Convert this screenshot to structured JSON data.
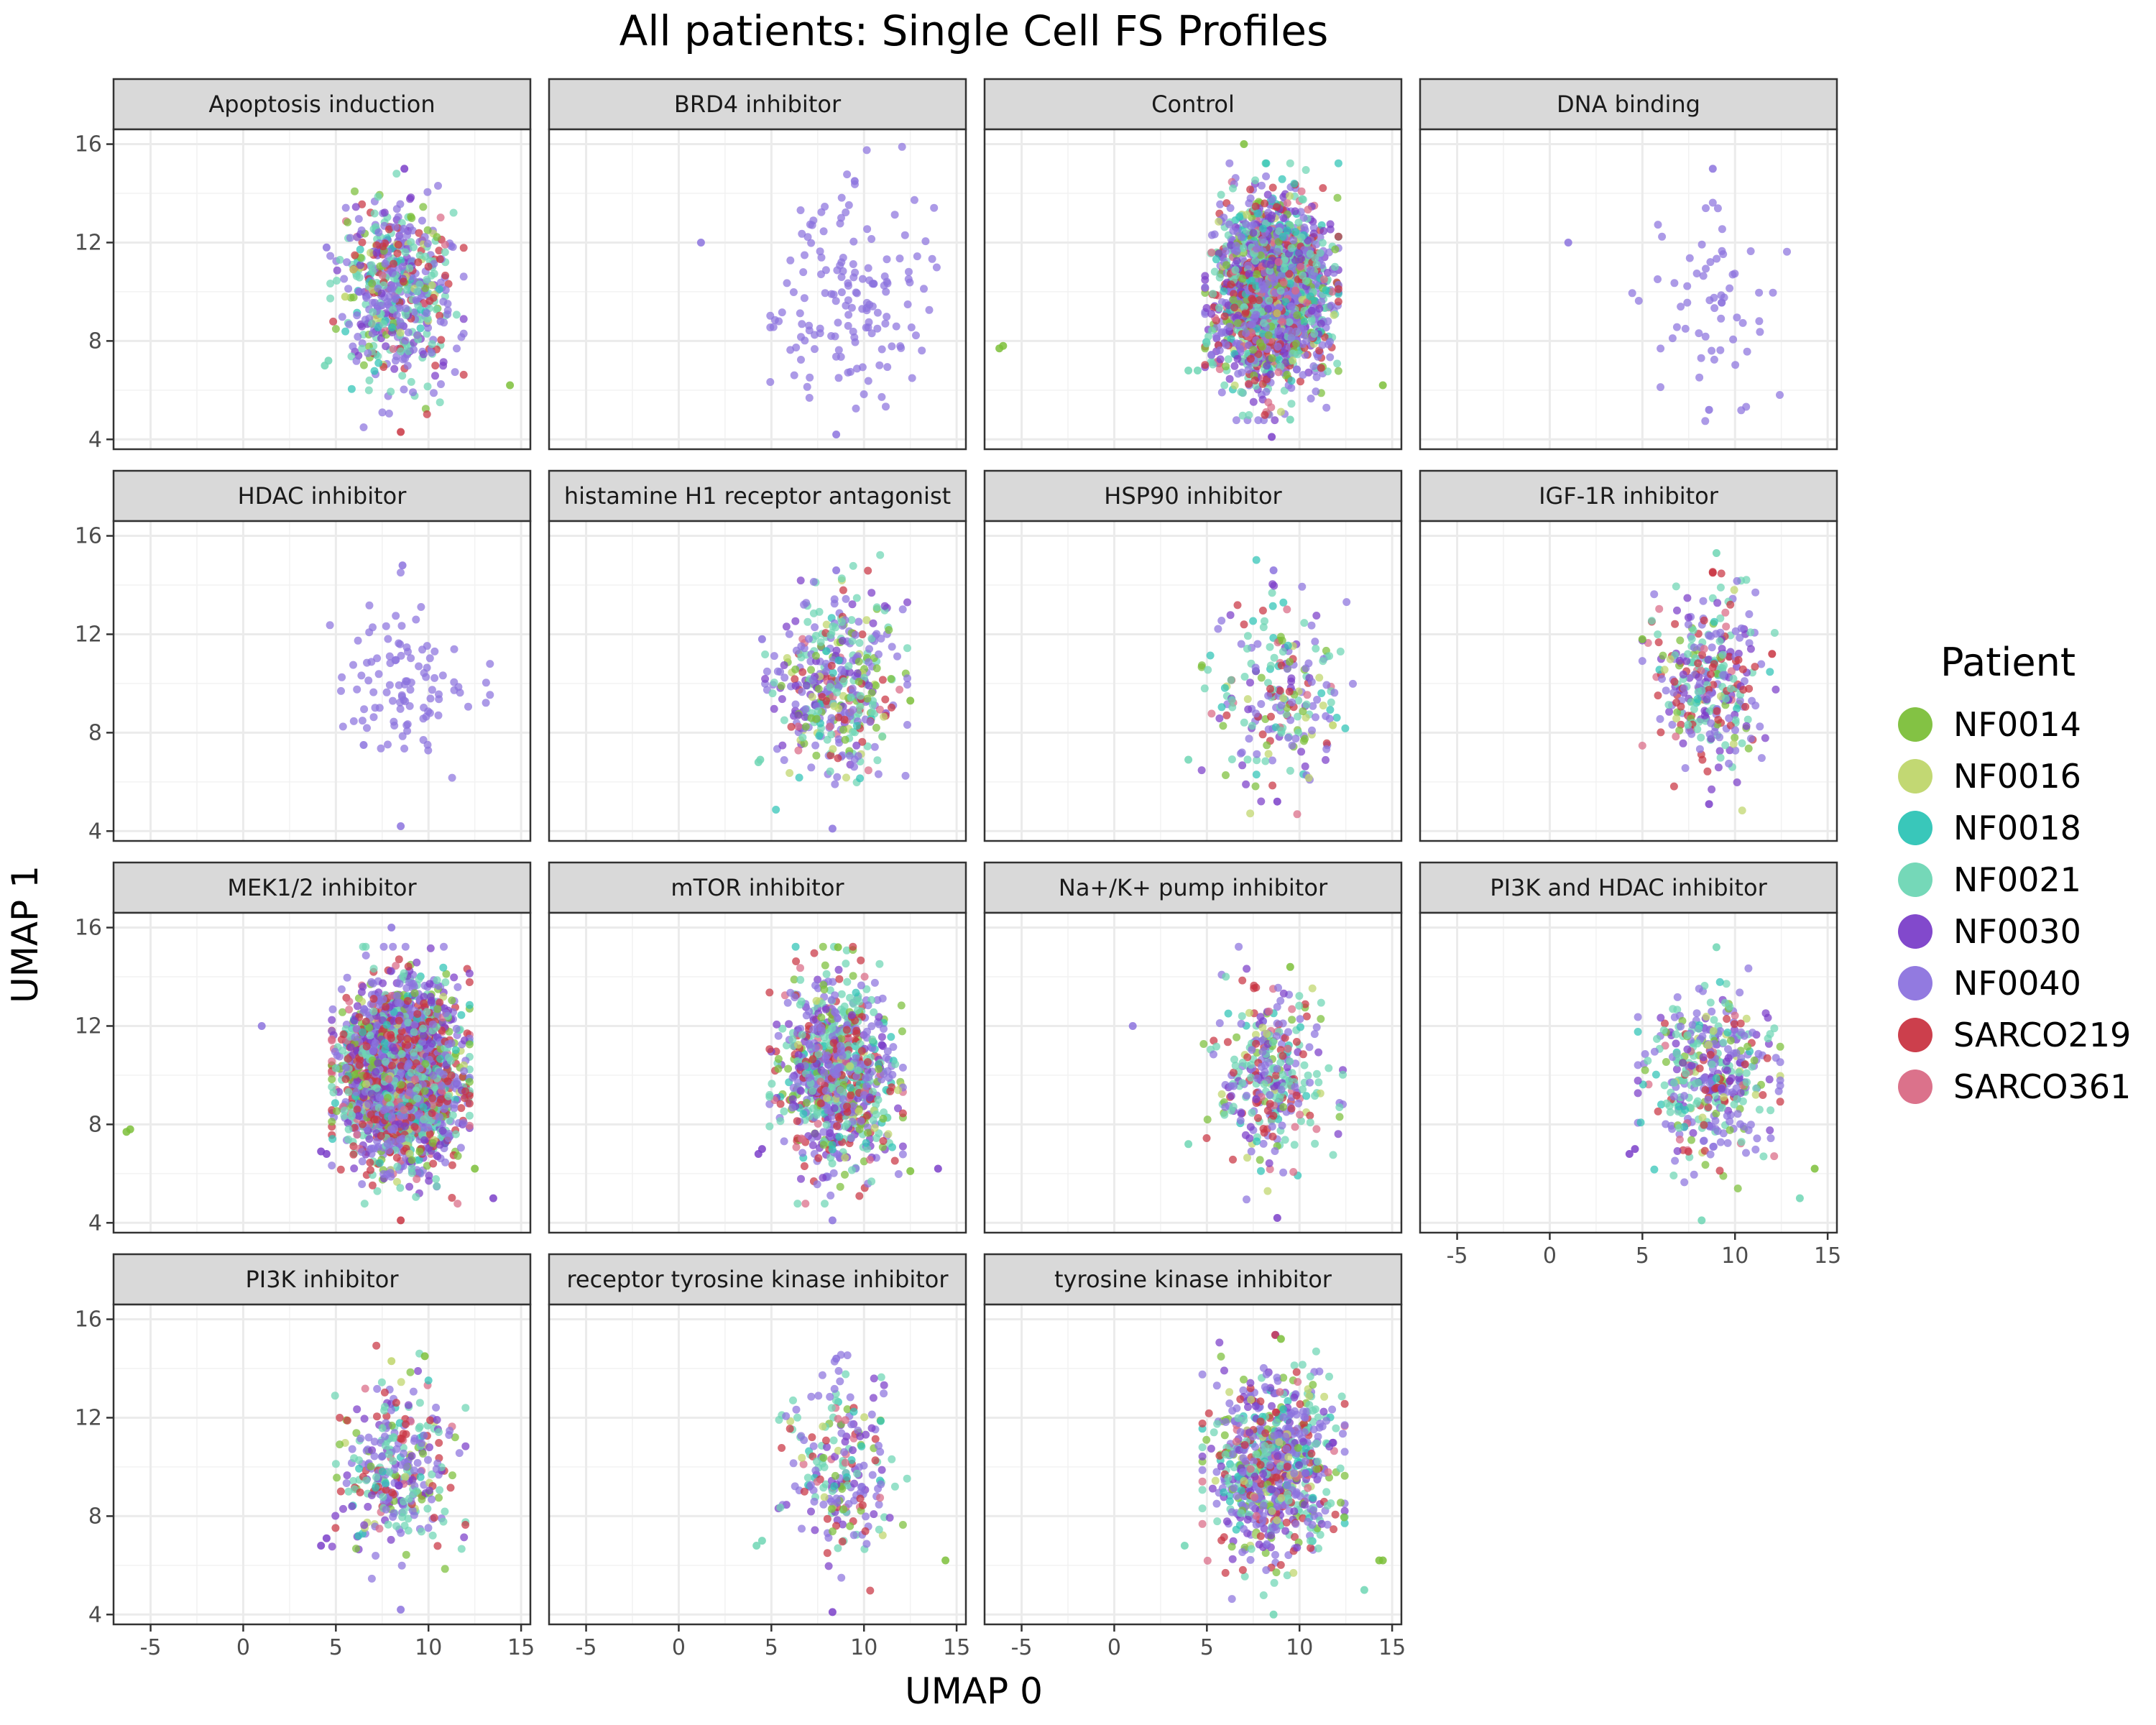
{
  "chart_data": {
    "type": "scatter",
    "title": "All patients: Single Cell FS Profiles",
    "xlabel": "UMAP 0",
    "ylabel": "UMAP 1",
    "xlim": [
      -7,
      15.5
    ],
    "ylim": [
      3.6,
      16.6
    ],
    "x_ticks": [
      -5,
      0,
      5,
      10,
      15
    ],
    "y_ticks": [
      4,
      8,
      12,
      16
    ],
    "grid": true,
    "legend": {
      "title": "Patient",
      "placement": "right",
      "entries": [
        {
          "name": "NF0014",
          "color": "#7CBF3A"
        },
        {
          "name": "NF0016",
          "color": "#BFD66B"
        },
        {
          "name": "NF0018",
          "color": "#2EC4B6"
        },
        {
          "name": "NF0021",
          "color": "#6ED6B4"
        },
        {
          "name": "NF0030",
          "color": "#7B3FC9"
        },
        {
          "name": "NF0040",
          "color": "#8C73DE"
        },
        {
          "name": "SARCO219",
          "color": "#C93542"
        },
        {
          "name": "SARCO361",
          "color": "#D96A85"
        }
      ]
    },
    "panels": [
      {
        "label": "Apoptosis induction",
        "n": 560,
        "mix": [
          0.06,
          0.03,
          0.05,
          0.22,
          0.12,
          0.33,
          0.16,
          0.03
        ],
        "cx": 8.3,
        "cy": 10.0,
        "sx": 1.5,
        "sy": 1.9,
        "outliers": [
          [
            14.4,
            6.2,
            0
          ],
          [
            4.6,
            7.2,
            3
          ],
          [
            4.4,
            7.0,
            3
          ],
          [
            8.7,
            15.0,
            4
          ],
          [
            8.5,
            4.3,
            6
          ],
          [
            4.5,
            11.8,
            5
          ],
          [
            5.5,
            9.8,
            1
          ]
        ]
      },
      {
        "label": "BRD4 inhibitor",
        "n": 150,
        "mix": [
          0,
          0,
          0,
          0,
          0,
          1,
          0,
          0
        ],
        "cx": 9.5,
        "cy": 9.8,
        "sx": 1.9,
        "sy": 2.1,
        "outliers": [
          [
            1.2,
            12.0,
            5
          ],
          [
            8.5,
            4.2,
            5
          ],
          [
            9.5,
            14.5,
            5
          ]
        ]
      },
      {
        "label": "Control",
        "n": 2000,
        "mix": [
          0.08,
          0.03,
          0.07,
          0.2,
          0.14,
          0.3,
          0.12,
          0.06
        ],
        "cx": 8.5,
        "cy": 10.0,
        "sx": 1.5,
        "sy": 1.8,
        "outliers": [
          [
            -6.2,
            7.7,
            0
          ],
          [
            -6.0,
            7.8,
            0
          ],
          [
            14.5,
            6.2,
            0
          ],
          [
            7.0,
            16.0,
            0
          ],
          [
            4.0,
            6.8,
            3
          ],
          [
            4.5,
            6.8,
            3
          ],
          [
            8.5,
            4.1,
            4
          ],
          [
            9.5,
            4.8,
            3
          ]
        ]
      },
      {
        "label": "DNA binding",
        "n": 60,
        "mix": [
          0,
          0,
          0,
          0,
          0,
          1,
          0,
          0
        ],
        "cx": 9.0,
        "cy": 9.8,
        "sx": 1.9,
        "sy": 2.1,
        "outliers": [
          [
            1.0,
            12.0,
            5
          ],
          [
            8.8,
            15.0,
            5
          ],
          [
            8.6,
            5.2,
            5
          ]
        ]
      },
      {
        "label": "HDAC inhibitor",
        "n": 100,
        "mix": [
          0,
          0,
          0,
          0,
          0,
          1,
          0,
          0
        ],
        "cx": 9.0,
        "cy": 9.9,
        "sx": 1.8,
        "sy": 1.8,
        "outliers": [
          [
            8.6,
            14.8,
            5
          ],
          [
            8.5,
            4.2,
            5
          ],
          [
            6.5,
            7.5,
            5
          ]
        ]
      },
      {
        "label": "histamine H1 receptor antagonist",
        "n": 430,
        "mix": [
          0.1,
          0.05,
          0.04,
          0.22,
          0.14,
          0.3,
          0.1,
          0.05
        ],
        "cx": 8.5,
        "cy": 10.0,
        "sx": 1.6,
        "sy": 1.8,
        "outliers": [
          [
            12.5,
            9.3,
            0
          ],
          [
            4.3,
            6.8,
            3
          ],
          [
            4.4,
            6.9,
            3
          ],
          [
            8.5,
            14.6,
            5
          ],
          [
            8.3,
            4.1,
            5
          ],
          [
            4.5,
            11.8,
            5
          ]
        ]
      },
      {
        "label": "HSP90 inhibitor",
        "n": 220,
        "mix": [
          0.08,
          0.05,
          0.1,
          0.28,
          0.1,
          0.25,
          0.1,
          0.04
        ],
        "cx": 8.8,
        "cy": 9.8,
        "sx": 1.7,
        "sy": 1.8,
        "outliers": [
          [
            4.0,
            6.9,
            3
          ],
          [
            8.6,
            14.6,
            5
          ],
          [
            8.8,
            5.2,
            4
          ],
          [
            11.8,
            8.3,
            1
          ]
        ]
      },
      {
        "label": "IGF-1R inhibitor",
        "n": 320,
        "mix": [
          0.05,
          0.03,
          0.04,
          0.22,
          0.14,
          0.3,
          0.18,
          0.04
        ],
        "cx": 8.6,
        "cy": 10.0,
        "sx": 1.5,
        "sy": 1.8,
        "outliers": [
          [
            5.0,
            11.8,
            0
          ],
          [
            9.0,
            15.3,
            3
          ],
          [
            8.8,
            14.5,
            6
          ],
          [
            8.6,
            5.1,
            4
          ],
          [
            12.0,
            11.2,
            6
          ]
        ]
      },
      {
        "label": "MEK1/2 inhibitor",
        "n": 2400,
        "mix": [
          0.07,
          0.03,
          0.06,
          0.18,
          0.13,
          0.3,
          0.18,
          0.05
        ],
        "cx": 8.5,
        "cy": 10.0,
        "sx": 1.55,
        "sy": 1.8,
        "outliers": [
          [
            -6.3,
            7.7,
            0
          ],
          [
            -6.1,
            7.8,
            0
          ],
          [
            1.0,
            12.0,
            5
          ],
          [
            13.5,
            5.0,
            4
          ],
          [
            12.5,
            6.2,
            0
          ],
          [
            4.5,
            6.8,
            4
          ],
          [
            4.2,
            6.9,
            4
          ],
          [
            8.0,
            16.0,
            5
          ],
          [
            8.5,
            4.1,
            6
          ]
        ]
      },
      {
        "label": "mTOR inhibitor",
        "n": 900,
        "mix": [
          0.08,
          0.03,
          0.05,
          0.22,
          0.13,
          0.3,
          0.14,
          0.05
        ],
        "cx": 8.5,
        "cy": 10.0,
        "sx": 1.5,
        "sy": 1.8,
        "outliers": [
          [
            14.0,
            6.2,
            4
          ],
          [
            12.5,
            6.1,
            0
          ],
          [
            4.3,
            6.8,
            4
          ],
          [
            4.5,
            7.0,
            4
          ],
          [
            8.6,
            15.2,
            0
          ],
          [
            8.3,
            4.1,
            5
          ]
        ]
      },
      {
        "label": "Na+/K+ pump inhibitor",
        "n": 330,
        "mix": [
          0.07,
          0.04,
          0.05,
          0.28,
          0.1,
          0.28,
          0.14,
          0.04
        ],
        "cx": 8.5,
        "cy": 10.0,
        "sx": 1.6,
        "sy": 1.8,
        "outliers": [
          [
            1.0,
            12.0,
            5
          ],
          [
            4.0,
            7.2,
            3
          ],
          [
            9.5,
            14.4,
            0
          ],
          [
            8.8,
            4.2,
            4
          ]
        ]
      },
      {
        "label": "PI3K and HDAC inhibitor",
        "n": 420,
        "mix": [
          0.07,
          0.04,
          0.05,
          0.25,
          0.13,
          0.34,
          0.08,
          0.04
        ],
        "cx": 8.6,
        "cy": 9.9,
        "sx": 1.6,
        "sy": 1.8,
        "outliers": [
          [
            14.3,
            6.2,
            0
          ],
          [
            13.5,
            5.0,
            3
          ],
          [
            4.3,
            6.8,
            4
          ],
          [
            4.6,
            7.0,
            4
          ],
          [
            9.0,
            15.2,
            3
          ],
          [
            8.2,
            4.1,
            3
          ]
        ]
      },
      {
        "label": "PI3K inhibitor",
        "n": 330,
        "mix": [
          0.08,
          0.05,
          0.04,
          0.24,
          0.12,
          0.3,
          0.12,
          0.05
        ],
        "cx": 8.4,
        "cy": 10.0,
        "sx": 1.5,
        "sy": 1.7,
        "outliers": [
          [
            4.2,
            6.8,
            4
          ],
          [
            4.5,
            7.1,
            4
          ],
          [
            8.5,
            4.2,
            5
          ],
          [
            9.8,
            14.5,
            0
          ],
          [
            8.0,
            14.3,
            1
          ]
        ]
      },
      {
        "label": "receptor tyrosine kinase inhibitor",
        "n": 230,
        "mix": [
          0.08,
          0.03,
          0.04,
          0.25,
          0.14,
          0.3,
          0.12,
          0.04
        ],
        "cx": 8.6,
        "cy": 9.8,
        "sx": 1.6,
        "sy": 1.8,
        "outliers": [
          [
            14.4,
            6.2,
            0
          ],
          [
            4.2,
            6.8,
            3
          ],
          [
            4.5,
            7.0,
            3
          ],
          [
            8.5,
            14.4,
            5
          ],
          [
            8.3,
            4.1,
            4
          ]
        ]
      },
      {
        "label": "tyrosine kinase inhibitor",
        "n": 800,
        "mix": [
          0.09,
          0.04,
          0.05,
          0.22,
          0.13,
          0.3,
          0.12,
          0.05
        ],
        "cx": 8.6,
        "cy": 10.0,
        "sx": 1.6,
        "sy": 1.85,
        "outliers": [
          [
            14.5,
            6.2,
            0
          ],
          [
            14.3,
            6.2,
            0
          ],
          [
            13.5,
            5.0,
            3
          ],
          [
            3.8,
            6.8,
            3
          ],
          [
            9.0,
            15.2,
            0
          ],
          [
            8.6,
            4.0,
            3
          ]
        ]
      }
    ]
  }
}
